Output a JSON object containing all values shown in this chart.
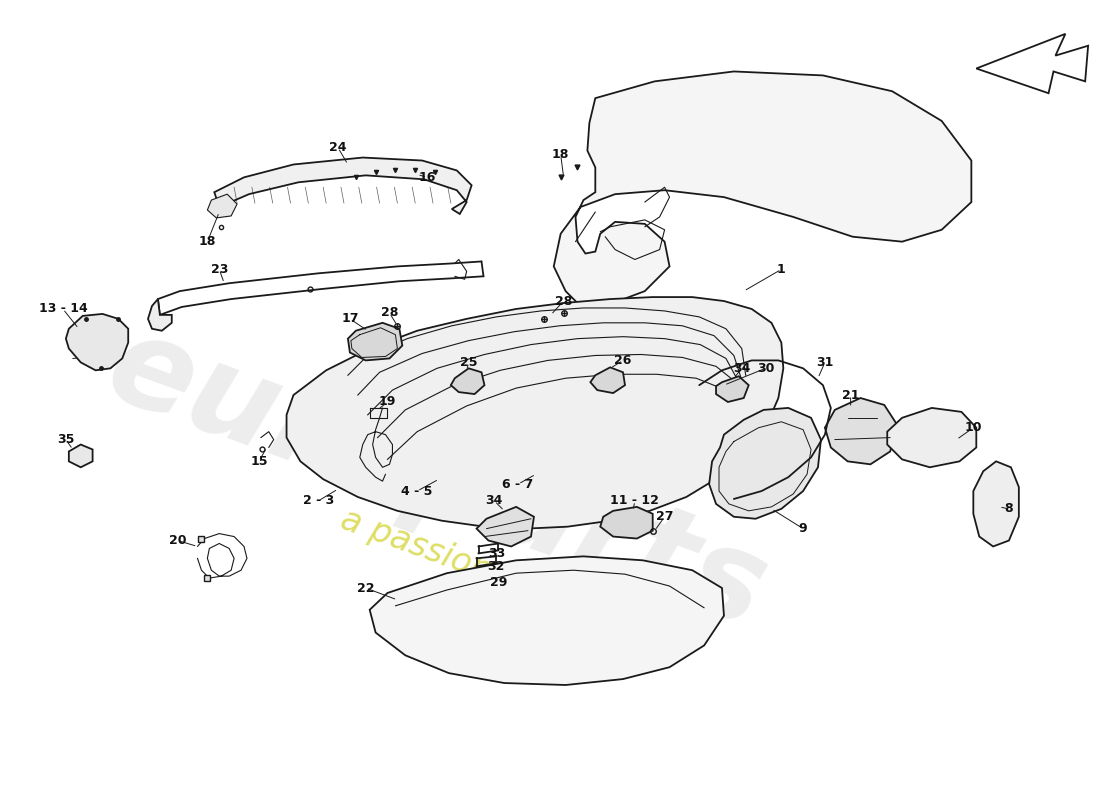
{
  "bg_color": "#ffffff",
  "line_color": "#1a1a1a",
  "wm_color1": "#cccccc",
  "wm_color2": "#c8c800",
  "label_fs": 9,
  "label_color": "#111111"
}
